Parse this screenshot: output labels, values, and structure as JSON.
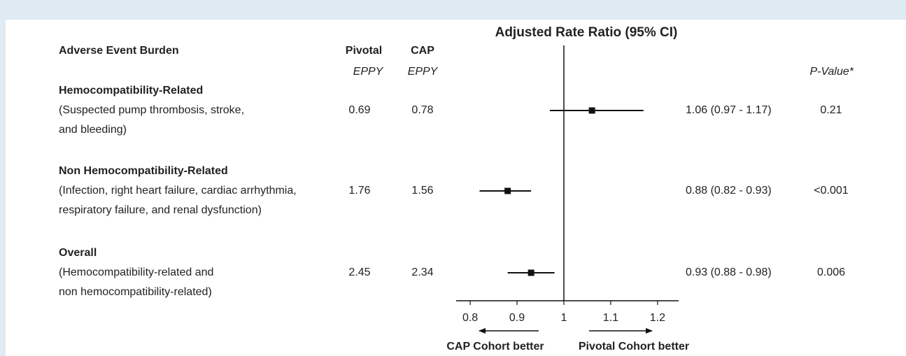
{
  "chart_data": {
    "type": "forest",
    "title": "Adjusted Rate Ratio (95% CI)",
    "columns": {
      "label": "Adverse Event Burden",
      "pivotal": "Pivotal",
      "cap": "CAP",
      "pivotal_unit": "EPPY",
      "cap_unit": "EPPY",
      "p_value": "P-Value*"
    },
    "rows": [
      {
        "group": "Hemocompatibility-Related",
        "description": [
          "(Suspected pump thrombosis,  stroke,",
          "and bleeding)"
        ],
        "pivotal": 0.69,
        "cap": 0.78,
        "estimate": 1.06,
        "lower": 0.97,
        "upper": 1.17,
        "ci_label": "1.06 (0.97 - 1.17)",
        "p_value": 0.21
      },
      {
        "group": "Non Hemocompatibility-Related",
        "description": [
          "(Infection, right heart failure, cardiac arrhythmia,",
          "respiratory failure, and renal dysfunction)"
        ],
        "pivotal": 1.76,
        "cap": 1.56,
        "estimate": 0.88,
        "lower": 0.82,
        "upper": 0.93,
        "ci_label": "0.88 (0.82 - 0.93)",
        "p_value": "<0.001"
      },
      {
        "group": "Overall",
        "description": [
          "(Hemocompatibility-related and",
          "non hemocompatibility-related)"
        ],
        "pivotal": 2.45,
        "cap": 2.34,
        "estimate": 0.93,
        "lower": 0.88,
        "upper": 0.98,
        "ci_label": "0.93 (0.88 - 0.98)",
        "p_value": 0.006
      }
    ],
    "xlim": [
      0.77,
      1.245
    ],
    "xticks": [
      0.8,
      0.9,
      1,
      1.1,
      1.2
    ],
    "reference": 1,
    "color": "#111111",
    "annotations": {
      "left": "CAP Cohort better",
      "right": "Pivotal Cohort better"
    }
  }
}
